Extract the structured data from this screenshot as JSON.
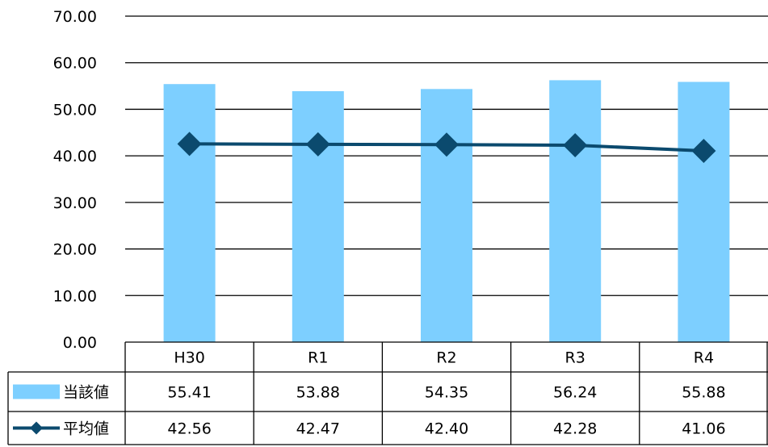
{
  "chart_data": {
    "type": "bar",
    "categories": [
      "H30",
      "R1",
      "R2",
      "R3",
      "R4"
    ],
    "series": [
      {
        "name": "当該値",
        "type": "bar",
        "values": [
          55.41,
          53.88,
          54.35,
          56.24,
          55.88
        ],
        "color": "#7dcfff"
      },
      {
        "name": "平均値",
        "type": "line",
        "values": [
          42.56,
          42.47,
          42.4,
          42.28,
          41.06
        ],
        "color": "#0b4a6e",
        "marker": "diamond"
      }
    ],
    "title": "",
    "xlabel": "",
    "ylabel": "",
    "ylim": [
      0,
      70
    ],
    "y_ticks": [
      "0.00",
      "10.00",
      "20.00",
      "30.00",
      "40.00",
      "50.00",
      "60.00",
      "70.00"
    ],
    "grid": true,
    "legend": "data-table",
    "data_table": {
      "rows": [
        {
          "label": "当該値",
          "values": [
            "55.41",
            "53.88",
            "54.35",
            "56.24",
            "55.88"
          ]
        },
        {
          "label": "平均値",
          "values": [
            "42.56",
            "42.47",
            "42.40",
            "42.28",
            "41.06"
          ]
        }
      ]
    }
  }
}
